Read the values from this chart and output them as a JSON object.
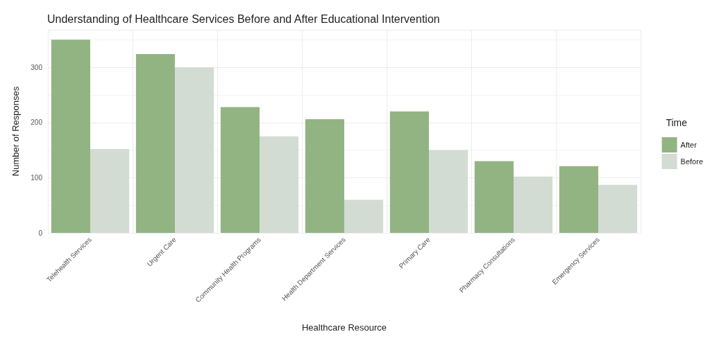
{
  "chart_data": {
    "type": "bar",
    "title": "Understanding of Healthcare Services Before and After Educational Intervention",
    "xlabel": "Healthcare Resource",
    "ylabel": "Number of Responses",
    "legend_title": "Time",
    "categories": [
      "Telehealth Services",
      "Urgent Care",
      "Community Health Programs",
      "Health Department Services",
      "Primary Care",
      "Pharmacy Consultations",
      "Emergency Services"
    ],
    "series": [
      {
        "name": "After",
        "color": "#92b483",
        "values": [
          350,
          324,
          228,
          206,
          220,
          130,
          121
        ]
      },
      {
        "name": "Before",
        "color": "#d3dcd2",
        "values": [
          152,
          300,
          175,
          60,
          150,
          102,
          87
        ]
      }
    ],
    "ylim": [
      0,
      368
    ],
    "yticks": [
      0,
      100,
      200,
      300
    ],
    "grid": true,
    "legend": "right"
  }
}
